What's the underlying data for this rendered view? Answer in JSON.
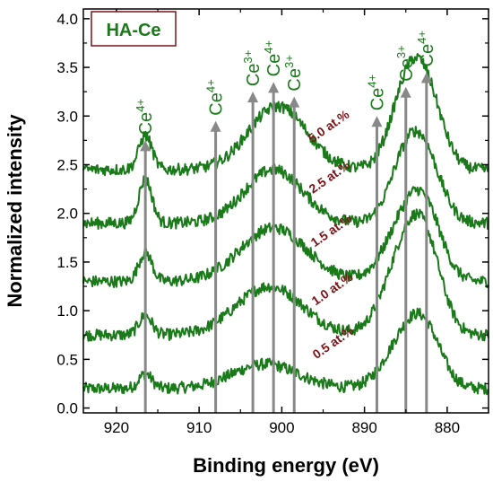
{
  "chart_data": {
    "type": "line",
    "title": "",
    "inset_label": "HA-Ce",
    "xlabel": "Binding energy (eV)",
    "ylabel": "Normalized intensity",
    "xlim": [
      924,
      875
    ],
    "ylim": [
      -0.05,
      4.1
    ],
    "x_reversed": true,
    "x_ticks": [
      "920",
      "910",
      "900",
      "890",
      "880"
    ],
    "y_ticks": [
      "0.0",
      "0.5",
      "1.0",
      "1.5",
      "2.0",
      "2.5",
      "3.0",
      "3.5",
      "4.0"
    ],
    "grid": false,
    "line_color": "#1a7a1a",
    "label_color": "#7a1418",
    "marker_color": "#888888",
    "series": [
      {
        "name": "0.5 at.%",
        "baseline": 0.2,
        "peaks": [
          [
            916.5,
            0.15,
            0.8
          ],
          [
            902.0,
            0.25,
            4.0
          ],
          [
            885.0,
            0.5,
            2.5
          ],
          [
            882.5,
            0.4,
            2.0
          ]
        ]
      },
      {
        "name": "1.0 at.%",
        "baseline": 0.75,
        "peaks": [
          [
            916.5,
            0.2,
            0.8
          ],
          [
            901.5,
            0.5,
            4.0
          ],
          [
            885.0,
            0.85,
            2.5
          ],
          [
            882.5,
            0.6,
            2.0
          ]
        ]
      },
      {
        "name": "1.5 at.%",
        "baseline": 1.3,
        "peaks": [
          [
            916.5,
            0.3,
            0.8
          ],
          [
            901.0,
            0.55,
            4.0
          ],
          [
            885.0,
            0.6,
            2.5
          ],
          [
            882.5,
            0.5,
            2.0
          ]
        ]
      },
      {
        "name": "2.5 at.%",
        "baseline": 1.9,
        "peaks": [
          [
            916.5,
            0.45,
            0.8
          ],
          [
            901.0,
            0.55,
            3.5
          ],
          [
            885.0,
            0.6,
            2.0
          ],
          [
            882.5,
            0.55,
            2.0
          ]
        ]
      },
      {
        "name": "5.0 at.%",
        "baseline": 2.45,
        "peaks": [
          [
            916.5,
            0.35,
            0.8
          ],
          [
            900.5,
            0.65,
            3.5
          ],
          [
            885.0,
            0.7,
            2.0
          ],
          [
            882.5,
            0.7,
            2.0
          ]
        ]
      }
    ],
    "peak_markers": [
      {
        "x": 916.5,
        "label": "Ce",
        "sup": "4+",
        "top": 2.75
      },
      {
        "x": 908.0,
        "label": "Ce",
        "sup": "4+",
        "top": 2.95
      },
      {
        "x": 903.5,
        "label": "Ce",
        "sup": "3+",
        "top": 3.25
      },
      {
        "x": 901.0,
        "label": "Ce",
        "sup": "4+",
        "top": 3.35
      },
      {
        "x": 898.5,
        "label": "Ce",
        "sup": "3+",
        "top": 3.2
      },
      {
        "x": 888.5,
        "label": "Ce",
        "sup": "4+",
        "top": 3.0
      },
      {
        "x": 885.0,
        "label": "Ce",
        "sup": "3+",
        "top": 3.3
      },
      {
        "x": 882.5,
        "label": "Ce",
        "sup": "4+",
        "top": 3.45
      }
    ]
  }
}
